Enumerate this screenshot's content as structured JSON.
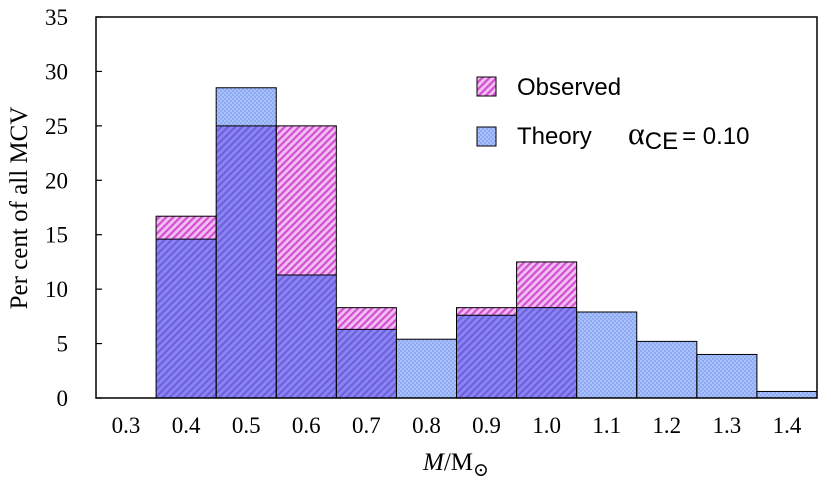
{
  "chart_data": {
    "type": "bar",
    "xlabel_italic": "M",
    "xlabel_rest": "/M",
    "xlabel_symbol": "⊙",
    "ylabel": "Per cent of all MCV",
    "ylim": [
      0,
      35
    ],
    "yticks": [
      "0",
      "5",
      "10",
      "15",
      "20",
      "25",
      "30",
      "35"
    ],
    "xlim": [
      0.25,
      1.45
    ],
    "categories": [
      "0.3",
      "0.4",
      "0.5",
      "0.6",
      "0.7",
      "0.8",
      "0.9",
      "1.0",
      "1.1",
      "1.2",
      "1.3",
      "1.4"
    ],
    "series": [
      {
        "name": "Observed",
        "color": "#e066e0",
        "values": [
          0,
          16.7,
          25.0,
          25.0,
          8.3,
          0,
          8.3,
          12.5,
          0,
          0,
          0,
          0
        ]
      },
      {
        "name": "Theory",
        "color": "#7f8ff5",
        "values": [
          0,
          14.6,
          28.5,
          11.3,
          6.3,
          5.4,
          7.6,
          8.3,
          7.9,
          5.2,
          4.0,
          0.6
        ]
      }
    ],
    "legend": {
      "position": "top-right",
      "observed_label": "Observed",
      "theory_label": "Theory",
      "alpha_symbol": "α",
      "alpha_sub": "CE",
      "alpha_value": "= 0.10"
    }
  }
}
